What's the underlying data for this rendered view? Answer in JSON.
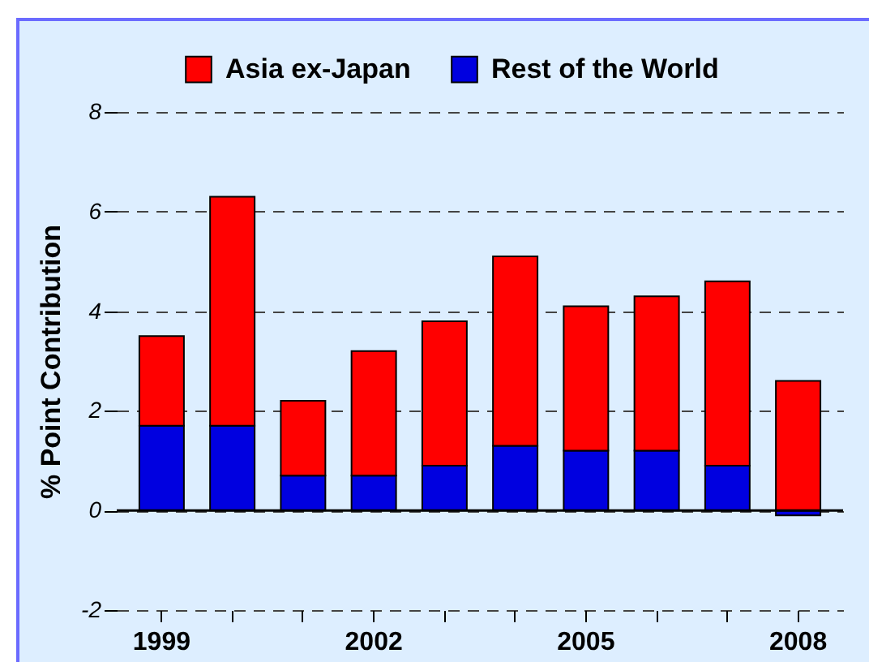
{
  "chart_data": {
    "type": "bar",
    "ylabel": "% Point Contribution",
    "categories": [
      "1999",
      null,
      null,
      "2002",
      null,
      null,
      "2005",
      null,
      null,
      "2008"
    ],
    "series": [
      {
        "name": "Rest of the World",
        "color": "#0000e0",
        "values": [
          1.7,
          1.7,
          0.7,
          0.7,
          0.9,
          1.3,
          1.2,
          1.2,
          0.9,
          -0.1
        ]
      },
      {
        "name": "Asia ex-Japan",
        "color": "#ff0000",
        "values": [
          1.8,
          4.6,
          1.5,
          2.5,
          2.9,
          3.8,
          2.9,
          3.1,
          3.7,
          2.6
        ]
      }
    ],
    "stacked": true,
    "ylim": [
      -2,
      8
    ],
    "yticks": [
      -2,
      0,
      2,
      4,
      6,
      8
    ],
    "grid": "y",
    "legend": "top",
    "ref_lines": [
      {
        "axis": "y",
        "value": 0,
        "color": "#000000"
      }
    ]
  }
}
